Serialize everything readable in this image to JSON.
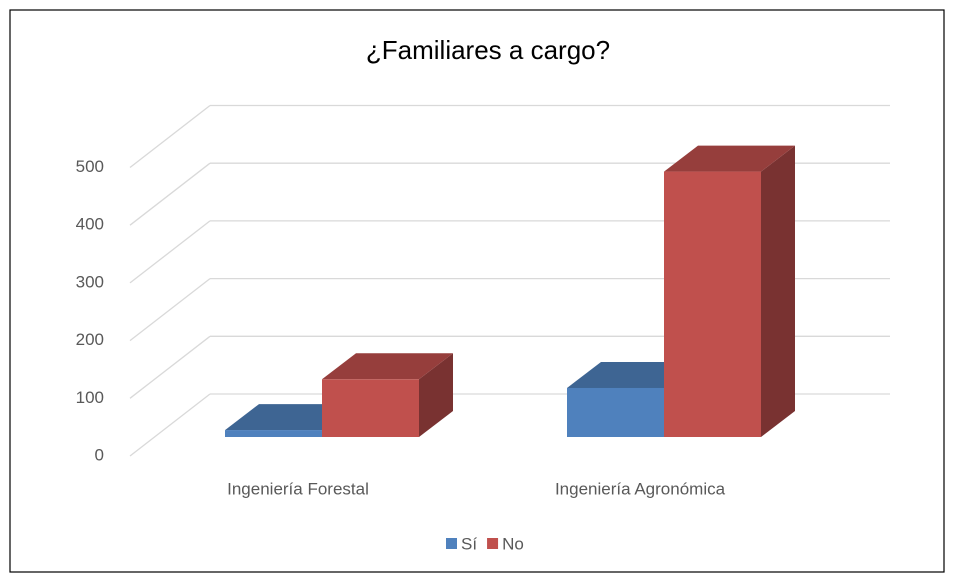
{
  "chart_data": {
    "type": "bar3d",
    "title": "¿Familiares a cargo?",
    "categories": [
      "Ingeniería Forestal",
      "Ingeniería Agronómica"
    ],
    "series": [
      {
        "name": "Sí",
        "color": "#4f81bd",
        "values": [
          12,
          85
        ]
      },
      {
        "name": "No",
        "color": "#c0504d",
        "values": [
          100,
          460
        ]
      }
    ],
    "ylim": [
      0,
      500
    ],
    "yticks": [
      0,
      100,
      200,
      300,
      400,
      500
    ],
    "grid": true,
    "legend": "bottom"
  }
}
